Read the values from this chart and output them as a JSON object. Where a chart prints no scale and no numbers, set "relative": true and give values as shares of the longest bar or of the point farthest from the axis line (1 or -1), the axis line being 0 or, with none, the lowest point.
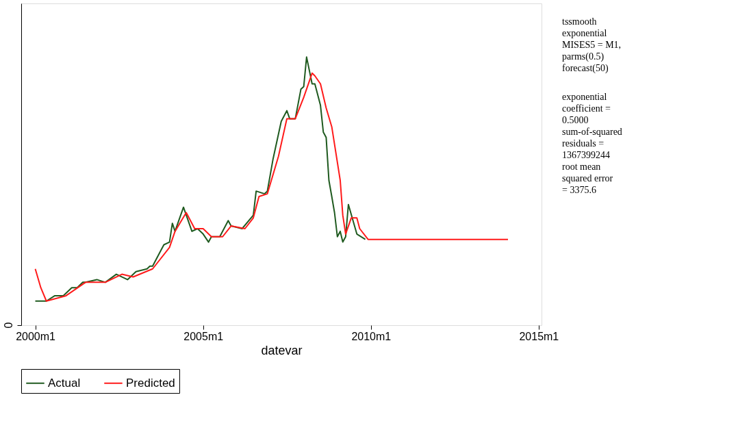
{
  "chart_data": {
    "type": "line",
    "relative": true,
    "xlabel": "datevar",
    "grid": false,
    "legend": "bottom",
    "marker": "none",
    "line_style": "solid",
    "xlim": [
      "1999-08",
      "2015-02"
    ],
    "xticks": [
      {
        "value": "2000-01",
        "label": "2000m1"
      },
      {
        "value": "2005-01",
        "label": "2005m1"
      },
      {
        "value": "2010-01",
        "label": "2010m1"
      },
      {
        "value": "2015-01",
        "label": "2015m1"
      }
    ],
    "annotations": [
      "0",
      "tssmooth\nexponential\nMISES5 = M1,\nparms(0.5)\nforecast(50)",
      "exponential\ncoefficient  =\n0.5000\nsum-of-squared\nresiduals =\n1367399244\nroot mean\nsquared error\n=       3375.6"
    ],
    "series": [
      {
        "name": "Actual",
        "color": "#1f5a1f",
        "x": [
          "2000-01",
          "2000-05",
          "2000-08",
          "2000-11",
          "2001-02",
          "2001-04",
          "2001-06",
          "2001-07",
          "2001-11",
          "2002-02",
          "2002-06",
          "2002-10",
          "2003-01",
          "2003-05",
          "2003-06",
          "2003-07",
          "2003-10",
          "2003-11",
          "2004-01",
          "2004-02",
          "2004-03",
          "2004-06",
          "2004-09",
          "2004-11",
          "2005-01",
          "2005-03",
          "2005-04",
          "2005-07",
          "2005-10",
          "2005-11",
          "2006-03",
          "2006-07",
          "2006-08",
          "2006-11",
          "2006-12",
          "2007-02",
          "2007-05",
          "2007-07",
          "2007-08",
          "2007-10",
          "2007-12",
          "2008-01",
          "2008-02",
          "2008-04",
          "2008-05",
          "2008-07",
          "2008-08",
          "2008-09",
          "2008-10",
          "2008-11",
          "2008-12",
          "2009-01",
          "2009-02",
          "2009-03",
          "2009-04",
          "2009-05",
          "2009-08",
          "2009-11"
        ],
        "values": [
          0.09,
          0.09,
          0.11,
          0.11,
          0.14,
          0.14,
          0.16,
          0.16,
          0.17,
          0.16,
          0.19,
          0.17,
          0.2,
          0.21,
          0.22,
          0.22,
          0.28,
          0.3,
          0.31,
          0.38,
          0.35,
          0.44,
          0.35,
          0.36,
          0.34,
          0.31,
          0.33,
          0.33,
          0.39,
          0.37,
          0.36,
          0.41,
          0.5,
          0.49,
          0.5,
          0.62,
          0.76,
          0.8,
          0.77,
          0.77,
          0.88,
          0.89,
          1,
          0.9,
          0.9,
          0.82,
          0.72,
          0.7,
          0.54,
          0.48,
          0.42,
          0.33,
          0.35,
          0.31,
          0.33,
          0.45,
          0.34,
          0.32
        ]
      },
      {
        "name": "Predicted",
        "color": "#ff1a1a",
        "x": [
          "2000-01",
          "2000-03",
          "2000-05",
          "2000-12",
          "2001-07",
          "2002-02",
          "2002-08",
          "2002-12",
          "2003-07",
          "2004-01",
          "2004-03",
          "2004-07",
          "2004-10",
          "2005-01",
          "2005-04",
          "2005-08",
          "2005-11",
          "2006-04",
          "2006-07",
          "2006-09",
          "2006-12",
          "2007-04",
          "2007-07",
          "2007-10",
          "2008-01",
          "2008-04",
          "2008-05",
          "2008-07",
          "2008-09",
          "2008-11",
          "2009-02",
          "2009-03",
          "2009-04",
          "2009-06",
          "2009-08",
          "2009-09",
          "2009-12",
          "2014-02"
        ],
        "values": [
          0.21,
          0.14,
          0.09,
          0.11,
          0.16,
          0.16,
          0.19,
          0.18,
          0.21,
          0.29,
          0.35,
          0.42,
          0.36,
          0.36,
          0.33,
          0.33,
          0.37,
          0.36,
          0.4,
          0.48,
          0.49,
          0.63,
          0.77,
          0.77,
          0.85,
          0.94,
          0.93,
          0.9,
          0.81,
          0.74,
          0.54,
          0.41,
          0.34,
          0.4,
          0.4,
          0.36,
          0.32,
          0.32
        ]
      }
    ]
  }
}
